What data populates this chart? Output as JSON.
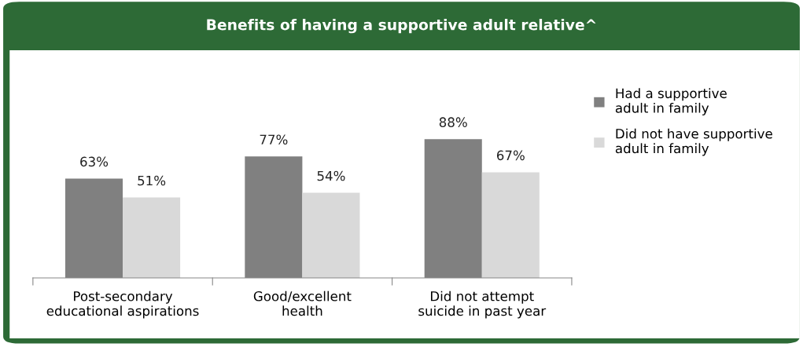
{
  "chart_data": {
    "type": "bar",
    "title": "Benefits of having a supportive adult relative^",
    "categories": [
      "Post-secondary\neducational aspirations",
      "Good/excellent\nhealth",
      "Did not attempt\nsuicide in past year"
    ],
    "series": [
      {
        "name": "Had a supportive\nadult in family",
        "color": "#808080",
        "values": [
          63,
          77,
          88
        ],
        "value_labels": [
          "63%",
          "77%",
          "88%"
        ]
      },
      {
        "name": "Did not have supportive\nadult in family",
        "color": "#d9d9d9",
        "values": [
          51,
          54,
          67
        ],
        "value_labels": [
          "51%",
          "54%",
          "67%"
        ]
      }
    ],
    "tick_labels": "x",
    "grid": false,
    "legend": "right"
  }
}
